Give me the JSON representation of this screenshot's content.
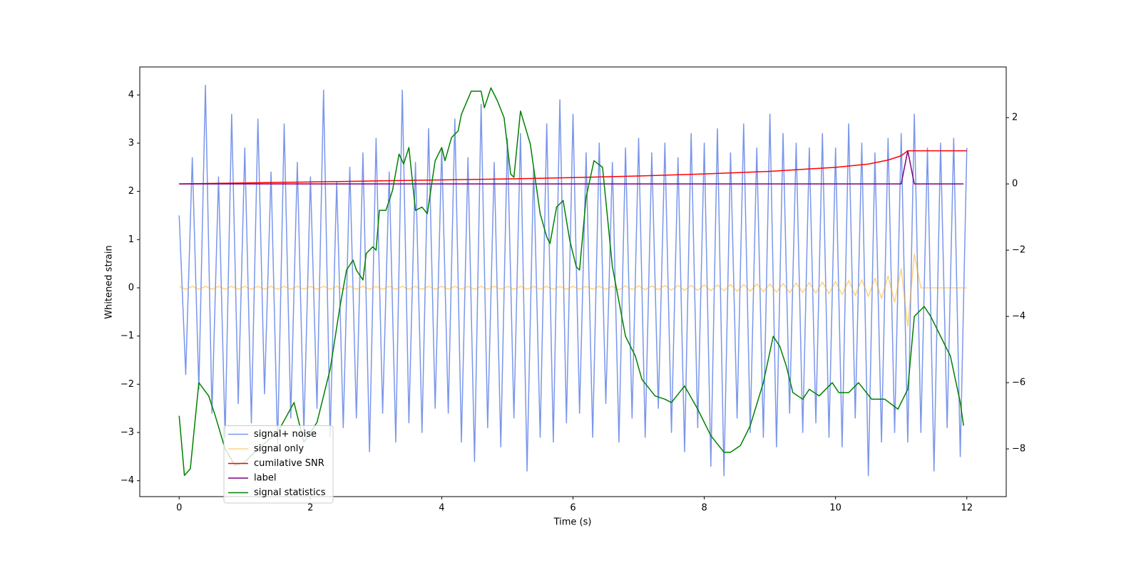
{
  "chart_data": {
    "type": "line",
    "xlabel": "Time (s)",
    "ylabel": "Whitened strain",
    "xlim": [
      -0.6,
      12.6
    ],
    "ylim": [
      -4.33,
      4.58
    ],
    "y2lim": [
      -9.44,
      3.53
    ],
    "xticks": [
      0,
      2,
      4,
      6,
      8,
      10,
      12
    ],
    "yticks": [
      {
        "value": -4,
        "label": "−4"
      },
      {
        "value": -3,
        "label": "−3"
      },
      {
        "value": -2,
        "label": "−2"
      },
      {
        "value": -1,
        "label": "−1"
      },
      0,
      1,
      2,
      3,
      4
    ],
    "y2ticks": [
      {
        "value": -8,
        "label": "−8"
      },
      {
        "value": -6,
        "label": "−6"
      },
      {
        "value": -4,
        "label": "−4"
      },
      {
        "value": -2,
        "label": "−2"
      },
      0,
      2
    ],
    "legend": "lower left",
    "x": [
      0,
      0.1,
      0.2,
      0.3,
      0.4,
      0.5,
      0.6,
      0.7,
      0.8,
      0.9,
      1,
      1.1,
      1.2,
      1.3,
      1.4,
      1.5,
      1.6,
      1.7,
      1.8,
      1.9,
      2,
      2.1,
      2.2,
      2.3,
      2.4,
      2.5,
      2.6,
      2.7,
      2.8,
      2.9,
      3,
      3.1,
      3.2,
      3.3,
      3.4,
      3.5,
      3.6,
      3.7,
      3.8,
      3.9,
      4,
      4.1,
      4.2,
      4.3,
      4.4,
      4.5,
      4.6,
      4.7,
      4.8,
      4.9,
      5,
      5.1,
      5.2,
      5.3,
      5.4,
      5.5,
      5.6,
      5.7,
      5.8,
      5.9,
      6,
      6.1,
      6.2,
      6.3,
      6.4,
      6.5,
      6.6,
      6.7,
      6.8,
      6.9,
      7,
      7.1,
      7.2,
      7.3,
      7.4,
      7.5,
      7.6,
      7.7,
      7.8,
      7.9,
      8,
      8.1,
      8.2,
      8.3,
      8.4,
      8.5,
      8.6,
      8.7,
      8.8,
      8.9,
      9,
      9.1,
      9.2,
      9.3,
      9.4,
      9.5,
      9.6,
      9.7,
      9.8,
      9.9,
      10,
      10.1,
      10.2,
      10.3,
      10.4,
      10.5,
      10.6,
      10.7,
      10.8,
      10.9,
      11,
      11.1,
      11.2,
      11.3,
      11.4,
      11.5,
      11.6,
      11.7,
      11.8,
      11.9,
      12
    ],
    "series": [
      {
        "name": "signal+ noise",
        "color": "#4169e1",
        "axis": "y",
        "values": [
          1.5,
          -1.8,
          2.7,
          -2.1,
          4.2,
          -2.6,
          2.3,
          -3.1,
          3.6,
          -2.4,
          2.9,
          -2.8,
          3.5,
          -2.2,
          2.4,
          -3.3,
          3.4,
          -2.7,
          2.6,
          -3.0,
          2.3,
          -2.5,
          4.1,
          -3.1,
          2.2,
          -2.9,
          2.5,
          -2.7,
          2.8,
          -3.4,
          3.1,
          -2.6,
          2.4,
          -3.2,
          4.1,
          -2.8,
          2.6,
          -3.0,
          3.3,
          -2.5,
          2.9,
          -2.6,
          3.5,
          -3.2,
          2.7,
          -3.6,
          3.8,
          -2.9,
          2.6,
          -3.3,
          3.1,
          -2.7,
          3.2,
          -3.8,
          2.5,
          -3.1,
          3.4,
          -3.2,
          3.9,
          -2.8,
          3.6,
          -2.6,
          2.8,
          -3.1,
          3.0,
          -2.4,
          2.6,
          -3.2,
          2.9,
          -2.7,
          3.1,
          -3.1,
          2.8,
          -2.5,
          3.0,
          -3.0,
          2.7,
          -3.4,
          3.2,
          -2.9,
          3.0,
          -3.7,
          3.3,
          -3.9,
          2.8,
          -2.7,
          3.4,
          -3.0,
          2.9,
          -3.1,
          3.6,
          -3.3,
          3.2,
          -2.6,
          3.0,
          -3.0,
          2.9,
          -2.8,
          3.2,
          -3.1,
          2.9,
          -3.3,
          3.4,
          -2.7,
          3.0,
          -3.9,
          2.8,
          -3.2,
          3.1,
          -3.0,
          3.2,
          -3.2,
          3.6,
          -3.0,
          2.9,
          -3.8,
          3.0,
          -2.9,
          3.1,
          -3.5,
          2.9
        ]
      },
      {
        "name": "signal only",
        "color": "#ffa500",
        "axis": "y",
        "values": [
          0.03,
          -0.03,
          0.03,
          -0.03,
          0.03,
          -0.03,
          0.03,
          -0.03,
          0.03,
          -0.03,
          0.03,
          -0.03,
          0.03,
          -0.03,
          0.03,
          -0.03,
          0.03,
          -0.03,
          0.03,
          -0.03,
          0.03,
          -0.03,
          0.03,
          -0.03,
          0.03,
          -0.03,
          0.03,
          -0.03,
          0.03,
          -0.03,
          0.03,
          -0.03,
          0.03,
          -0.03,
          0.03,
          -0.03,
          0.03,
          -0.03,
          0.03,
          -0.03,
          0.03,
          -0.03,
          0.03,
          -0.03,
          0.03,
          -0.03,
          0.03,
          -0.03,
          0.03,
          -0.03,
          0.03,
          -0.03,
          0.03,
          -0.03,
          0.03,
          -0.03,
          0.03,
          -0.03,
          0.03,
          -0.03,
          0.03,
          -0.03,
          0.03,
          -0.03,
          0.03,
          -0.03,
          0.03,
          -0.04,
          0.04,
          -0.04,
          0.04,
          -0.04,
          0.04,
          -0.04,
          0.05,
          -0.05,
          0.05,
          -0.05,
          0.05,
          -0.05,
          0.06,
          -0.06,
          0.06,
          -0.06,
          0.07,
          -0.07,
          0.07,
          -0.07,
          0.08,
          -0.08,
          0.08,
          -0.09,
          0.09,
          -0.1,
          0.1,
          -0.1,
          0.11,
          -0.11,
          0.12,
          -0.12,
          0.13,
          -0.14,
          0.15,
          -0.16,
          0.17,
          -0.18,
          0.2,
          -0.22,
          0.25,
          -0.3,
          0.4,
          -0.8,
          0.7,
          0,
          0,
          0,
          0,
          0,
          0,
          0,
          0
        ]
      },
      {
        "name": "cumilative SNR",
        "color": "#ff0000",
        "axis": "y2",
        "x": [
          0,
          1,
          2,
          3,
          4,
          5,
          6,
          7,
          8,
          9,
          10,
          10.5,
          10.8,
          11,
          11.1,
          12
        ],
        "values": [
          0,
          0.03,
          0.06,
          0.09,
          0.12,
          0.15,
          0.19,
          0.24,
          0.3,
          0.38,
          0.5,
          0.6,
          0.72,
          0.85,
          1.0,
          1.0
        ]
      },
      {
        "name": "label",
        "color": "#800080",
        "axis": "y2",
        "x": [
          0,
          11.0,
          11.1,
          11.2,
          11.95
        ],
        "values": [
          0,
          0,
          1,
          0,
          0
        ]
      },
      {
        "name": "signal statistics",
        "color": "#008000",
        "axis": "y2",
        "x": [
          0,
          0.08,
          0.17,
          0.3,
          0.45,
          0.55,
          0.7,
          0.85,
          1.0,
          1.2,
          1.5,
          1.75,
          1.9,
          2.1,
          2.3,
          2.45,
          2.55,
          2.65,
          2.7,
          2.8,
          2.85,
          2.95,
          3.0,
          3.05,
          3.15,
          3.25,
          3.35,
          3.42,
          3.5,
          3.6,
          3.7,
          3.78,
          3.9,
          4.0,
          4.05,
          4.15,
          4.25,
          4.3,
          4.45,
          4.6,
          4.65,
          4.75,
          4.85,
          4.95,
          5.05,
          5.1,
          5.2,
          5.35,
          5.5,
          5.6,
          5.65,
          5.75,
          5.85,
          5.95,
          6.05,
          6.1,
          6.2,
          6.32,
          6.45,
          6.6,
          6.8,
          6.95,
          7.05,
          7.25,
          7.4,
          7.5,
          7.7,
          7.9,
          8.1,
          8.3,
          8.4,
          8.55,
          8.7,
          8.9,
          9.05,
          9.15,
          9.25,
          9.35,
          9.5,
          9.6,
          9.75,
          9.95,
          10.05,
          10.2,
          10.35,
          10.55,
          10.75,
          10.95,
          11.1,
          11.2,
          11.35,
          11.45,
          11.6,
          11.75,
          11.9,
          11.95
        ],
        "values": [
          -7.0,
          -8.8,
          -8.6,
          -6.0,
          -6.4,
          -7.0,
          -8.0,
          -8.5,
          -8.4,
          -8.0,
          -7.5,
          -6.6,
          -7.8,
          -7.2,
          -5.6,
          -3.7,
          -2.6,
          -2.3,
          -2.6,
          -2.9,
          -2.1,
          -1.9,
          -2.0,
          -0.8,
          -0.8,
          -0.2,
          0.9,
          0.6,
          1.1,
          -0.8,
          -0.7,
          -0.9,
          0.7,
          1.1,
          0.7,
          1.4,
          1.6,
          2.1,
          2.8,
          2.8,
          2.3,
          2.9,
          2.5,
          2.0,
          0.3,
          0.2,
          2.2,
          1.2,
          -0.9,
          -1.6,
          -1.8,
          -0.7,
          -0.5,
          -1.7,
          -2.5,
          -2.6,
          -0.4,
          0.7,
          0.5,
          -2.5,
          -4.6,
          -5.2,
          -5.9,
          -6.4,
          -6.5,
          -6.6,
          -6.1,
          -6.8,
          -7.6,
          -8.1,
          -8.1,
          -7.9,
          -7.3,
          -6.0,
          -4.6,
          -4.9,
          -5.5,
          -6.3,
          -6.5,
          -6.2,
          -6.4,
          -6.0,
          -6.3,
          -6.3,
          -6.0,
          -6.5,
          -6.5,
          -6.8,
          -6.2,
          -4.0,
          -3.7,
          -4.0,
          -4.6,
          -5.2,
          -6.6,
          -7.3
        ]
      }
    ]
  }
}
